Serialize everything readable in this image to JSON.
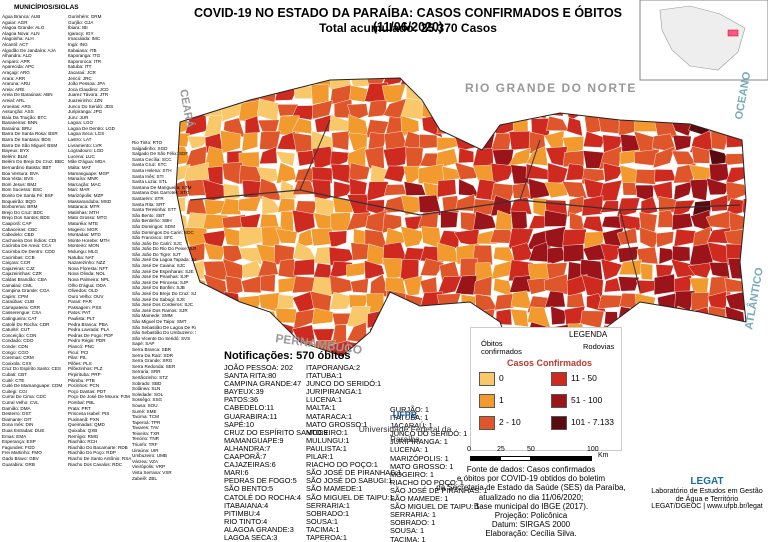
{
  "header": {
    "title": "COVID-19 NO ESTADO DA PARAÍBA: CASOS CONFIRMADOS E  ÓBITOS (11/06/2020)",
    "subtitle": "Total acumulado: 25.370 Casos"
  },
  "municipalities": {
    "title": "MUNICÍPIOS/SIGLAS",
    "columns": [
      [
        "Água Branca: AUB",
        "Aguiar: AGR",
        "Alagoa Grande: ALG",
        "Alagoa Nova: ALN",
        "Alagoinha: ALH",
        "Alcantil: ACT",
        "Algodão De Jandaíra: AJA",
        "Alhandra: ALD",
        "Amparo: APR",
        "Aparecida: APC",
        "Araçagi: ARG",
        "Arara: ARR",
        "Araruna: ARU",
        "Areia: ARE",
        "Areia De Baraúnas: ABN",
        "Areial: ARL",
        "Aroeiras: ARS",
        "Assunção: ASS",
        "Baía Da Traição: BTC",
        "Bananeiras: BNN",
        "Baraúna: BRU",
        "Barra De Santa Rosa: BSR",
        "Barra De Santana: BDS",
        "Barra De São Miguel: BSM",
        "Bayeux: BYX",
        "Belém: BLM",
        "Belém Do Brejo Do Cruz: BBC",
        "Bernardino Batista: BBT",
        "Boa Ventura: BVA",
        "Boa Vista: BVS",
        "Bom Jesus: BMJ",
        "Bom Sucesso: BSC",
        "Bonito De Santa Fé: BSF",
        "Boqueirão: BQO",
        "Borborema: BRM",
        "Brejo Do Cruz: BDC",
        "Brejo Dos Santos: BDS",
        "Caaporã: CAP",
        "Cabaceiras: CBC",
        "Cabedelo: CBD",
        "Cachoeira Dos Índios: CDI",
        "Cacimba De Areia: CCA",
        "Cacimba De Dentro: CDD",
        "Cacimbas: CCB",
        "Caiçara: CCR",
        "Cajazeiras: CJZ",
        "Cajazeirinhas: CZR",
        "Caldas Brandão: CBA",
        "Camalaú: CML",
        "Campina Grande: CGA",
        "Capim: CPM",
        "Caraúbas: CUB",
        "Carrapateira: CRR",
        "Casserengue: CSA",
        "Catingueira: CAT",
        "Catolé Do Rocha: CDR",
        "Caturité: CUT",
        "Conceição: CON",
        "Condado: CDO",
        "Conde: CDN",
        "Congo: CGO",
        "Coremas: CRM",
        "Coxixola: CXX",
        "Cruz Do Espírito Santo: CES",
        "Cubati: CBT",
        "Cuité: CTE",
        "Cuité De Mamanguape: CDM",
        "Cuitegi: CGI",
        "Curral De Cima: CDC",
        "Curral Velho: CVL",
        "Damião: DMA",
        "Desterro: DST",
        "Diamante: DIT",
        "Dona Inês: DIN",
        "Duas Estradas: DUE",
        "Emas: EMA",
        "Esperança: ESP",
        "Fagundes: FGD",
        "Frei Martinho: FMO",
        "Gado Bravo: GBV",
        "Guarabira: GRB"
      ],
      [
        "Gurinhém: GRM",
        "Gurjão: GJA",
        "Ibiara: IBI",
        "Igaracy: IGY",
        "Imaculada: IMC",
        "Ingá: ING",
        "Itabaiana: ITB",
        "Itaporanga: ITG",
        "Itapororoca: ITR",
        "Itatuba: ITT",
        "Jacaraú: JCR",
        "Jericó: JRC",
        "João Pessoa: JPA",
        "Joca Claudino: JCD",
        "Juarez Távora: JTR",
        "Juazeirinho: JZN",
        "Junco Do Seridó: JDS",
        "Juripiranga: JPG",
        "Juru: JUR",
        "Lagoa: LGO",
        "Lagoa De Dentro: LGD",
        "Lagoa Seca: LGS",
        "Lastro: LAT",
        "Livramento: LVR",
        "Logradouro: LGD",
        "Lucena: LUC",
        "Mãe D'água: MDA",
        "Malta: MAT",
        "Mamanguape: MGP",
        "Manaíra: MNR",
        "Marcação: MAC",
        "Mari: MAR",
        "Marizópolis: MZP",
        "Massaranduba: MSD",
        "Mataraca: MTR",
        "Matinhas: MTH",
        "Mato Grosso: MTG",
        "Maturéia: MTE",
        "Mogeiro: MGR",
        "Montadas: MTD",
        "Monte Horebe: MTH",
        "Monteiro: MON",
        "Mulungu: MLG",
        "Natuba: NAT",
        "Nazarezinho: NZZ",
        "Nova Floresta: NFT",
        "Nova Olinda: NOL",
        "Nova Palmeira: NPL",
        "Olho D'água: ODA",
        "Olivedos: OLD",
        "Ouro Velho: OUV",
        "Parari: PAR",
        "Passagem: PSS",
        "Patos: PAT",
        "Paulista: PLT",
        "Pedra Branca: PBA",
        "Pedra Lavrada: PLA",
        "Pedras De Fogo: PDF",
        "Pedro Régis: PDR",
        "Piancó: PNC",
        "Picuí: PCI",
        "Pilar: PIL",
        "Pilões: PLS",
        "Pilõezinhos: PLZ",
        "Pirpirituba: PRP",
        "Pitimbu: PTB",
        "Pocinhos: PCN",
        "Poço Dantas: PDT",
        "Poço De José De Moura: PJM",
        "Pombal: PBL",
        "Prata: PRT",
        "Princesa Isabel: PIS",
        "Puxinanã: PXN",
        "Queimadas: QMD",
        "Quixaba: QXB",
        "Remígio: RMG",
        "Riachão: RCH",
        "Riachão Do Bacamarte: RDB",
        "Riachão Do Poço: RDP",
        "Riacho De Santo Antônio: RSA",
        "Riacho Dos Cavalos: RDC"
      ],
      [
        "Rio Tinto: RTO",
        "Salgadinho: SGD",
        "Salgado De São Félix: SDF",
        "Santa Cecília: SCC",
        "Santa Cruz: STC",
        "Santa Helena: STH",
        "Santa Inês: STI",
        "Santa Luzia: STL",
        "Santana De Mangueira: STM",
        "Santana Dos Garrotes: STG",
        "Santarém: STR",
        "Santa Rita: SRT",
        "Santa Teresinha: STT",
        "São Bento: SBT",
        "São Bentinho: SBH",
        "São Domingos: SDM",
        "São Domingos Do Cariri: SDC",
        "São Francisco: SFC",
        "São João Do Cariri: SJC",
        "São João Do Rio Do Peixe: SJR",
        "São João Do Tigre: SJT",
        "São José Da Lagoa Tapada: SJL",
        "São José De Caiana: SJC",
        "São José De Espinharas: SJE",
        "São José De Piranhas: SJP",
        "São José De Princesa: SJP",
        "São José Do Bonfim: SJB",
        "São José Do Brejo Do Cruz: SJB",
        "São José Do Sabugi: SJS",
        "São José Dos Cordeiros: SJC",
        "São José Dos Ramos: SJR",
        "São Mamede: SMM",
        "São Miguel De Taipu: SMT",
        "São Sebastião De Lagoa De Roça: SSL",
        "São Sebastião Do Umbuzeiro: SSU",
        "São Vicente Do Seridó: SVS",
        "Sapé: SAP",
        "Serra Branca: SBR",
        "Serra Da Raiz: SDR",
        "Serra Grande: SRG",
        "Serra Redonda: SER",
        "Serraria: SRR",
        "Sertãozinho: STZ",
        "Sobrado: SBD",
        "Solânea: SLN",
        "Soledade: SOL",
        "Sossêgo: SSG",
        "Sousa: SOU",
        "Sumé: SME",
        "Tacima: TCM",
        "Taperoá: TPR",
        "Tavares: TAV",
        "Teixeira: TXR",
        "Tenório: TNR",
        "Triunfo: TRF",
        "Uiraúna: UIR",
        "Umbuzeiro: UMB",
        "Várzea: VZA",
        "Vieirópolis: VRP",
        "Vista Serrana: VSR",
        "Zabelê: ZBL"
      ]
    ]
  },
  "map": {
    "neighbors": [
      "CEARÁ",
      "RIO GRANDE DO NORTE",
      "PERNAMBUCO"
    ],
    "ocean": [
      "OCEANO",
      "ATLÂNTICO"
    ]
  },
  "deaths": {
    "title": "Notificações: 570 óbitos",
    "columns": [
      [
        "JOÃO PESSOA: 202",
        "SANTA RITA:80",
        "CAMPINA GRANDE:47",
        "BAYEUX:39",
        "PATOS:36",
        "CABEDELO:11",
        "GUARABIRA:11",
        "SAPÉ:10",
        "CRUZ DO ESPÍRITO SANTO:9",
        "MAMANGUAPE:9",
        "ALHANDRA:7",
        "CAAPORÃ:7",
        "CAJAZEIRAS:6",
        "MARI:6",
        "PEDRAS DE FOGO:5",
        "SÃO BENTO:5",
        "CATOLÉ DO ROCHA:4",
        "ITABAIANA:4",
        "PITIMBU:4",
        "RIO TINTO:4",
        "ALAGOA GRANDE:3",
        "LAGOA SECA:3",
        "SANTA LUZIA:3",
        "ALAGOA NOVA:2"
      ],
      [
        "ITAPORANGA:2",
        "ITATUBA:1",
        "JUNCO DO SERIDÓ:1",
        "JURIPIRANGA:1",
        "LUCENA:1",
        "MALTA:1",
        "MATARACA:1",
        "MATO GROSSO:1",
        "MOGEIRO:1",
        "MULUNGU:1",
        "PAULISTA:1",
        "PILAR:1",
        "RIACHO DO POÇO:1",
        "SÃO JOSÉ DE PIRANHAS:1",
        "SÃO JOSÉ DO SABUGI:1",
        "SÃO MAMEDE:1",
        "SÃO MIGUEL DE TAIPU:1",
        "SERRARIA:1",
        "SOBRADO:1",
        "SOUSA:1",
        "TACIMA:1",
        "TAPEROA:1",
        "UIRAÚNA:1",
        "UMBUZEIRO:1"
      ],
      [
        "GURJÃO: 1",
        "ITATUBA: 1",
        "JACARAÚ: 1",
        "JUNCO DO SERIDÓ: 1",
        "JURIPIRANGA: 1",
        "LUCENA: 1",
        "MARIZÓPOLIS: 1",
        "MATO GROSSO: 1",
        "MOGEIRO: 1",
        "RIACHO DO POÇO: 1",
        "SÃO JOSÉ DE PIRANHAS: 1",
        "SÃO MAMEDE: 1",
        "SÃO MIGUEL DE TAIPU: 1",
        "SERRARIA: 1",
        "SOBRADO: 1",
        "SOUSA: 1",
        "TACIMA: 1"
      ]
    ]
  },
  "legend": {
    "title": "LEGENDA",
    "deaths": "Óbitos confirmados",
    "roads": "Rodovias",
    "cases_title": "Casos Confirmados",
    "classes": [
      {
        "label": "0",
        "color": "#f9c86b"
      },
      {
        "label": "1",
        "color": "#f29a2e"
      },
      {
        "label": "2 - 10",
        "color": "#e0562b"
      },
      {
        "label": "11 - 50",
        "color": "#cf2a1f"
      },
      {
        "label": "51 - 100",
        "color": "#9b1419"
      },
      {
        "label": "101 - 7.133",
        "color": "#5a0b10"
      }
    ]
  },
  "scale": {
    "ticks": [
      "0",
      "25",
      "50",
      "100"
    ],
    "unit": "Km"
  },
  "ufpb": {
    "acronym": "UFPB",
    "name": "Universidade Federal da Paraíba"
  },
  "source": {
    "lines": [
      "Fonte de dados: Casos confirmados",
      "e óbitos por COVID-19 obtidos do boletim",
      "da Secretaria de Estado da Saúde (SES) da Paraíba,",
      "atualizado no dia 11/06/2020;",
      "Base municipal do IBGE (2017).",
      "Projeção: Policônica",
      "Datum: SIRGAS 2000",
      "Elaboração: Cecília Silva."
    ]
  },
  "legat": {
    "logo": "LEGAT",
    "name": "Laboratório de Estudos em Gestão de Água e Território",
    "site": "LEGAT/DGEOC | www.ufpb.br/legat"
  }
}
